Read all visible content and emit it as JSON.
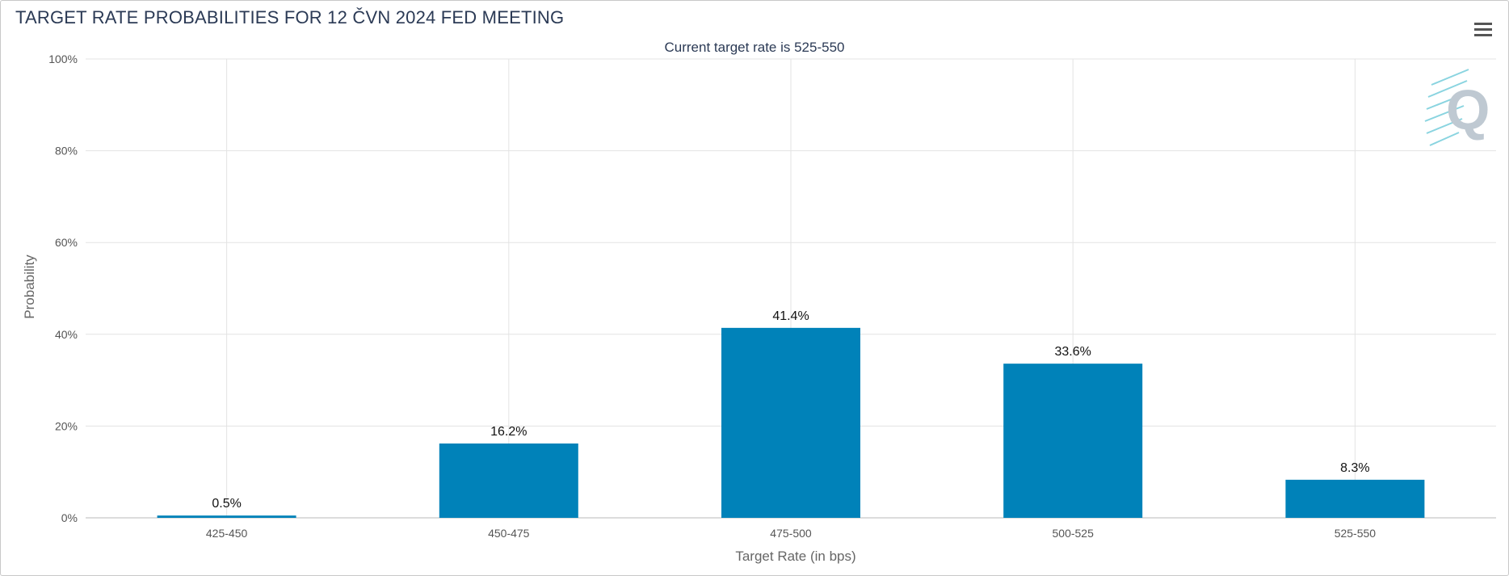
{
  "header": {
    "title": "TARGET RATE PROBABILITIES FOR 12 ČVN 2024 FED MEETING",
    "menu_icon": "hamburger-menu-icon",
    "logo_icon": "q-logo-icon"
  },
  "chart_data": {
    "type": "bar",
    "subtitle": "Current target rate is 525-550",
    "xlabel": "Target Rate (in bps)",
    "ylabel": "Probability",
    "categories": [
      "425-450",
      "450-475",
      "475-500",
      "500-525",
      "525-550"
    ],
    "values": [
      0.5,
      16.2,
      41.4,
      33.6,
      8.3
    ],
    "value_labels": [
      "0.5%",
      "16.2%",
      "41.4%",
      "33.6%",
      "8.3%"
    ],
    "ylim": [
      0,
      100
    ],
    "yticks": [
      0,
      20,
      40,
      60,
      80,
      100
    ],
    "ytick_labels": [
      "0%",
      "20%",
      "40%",
      "60%",
      "80%",
      "100%"
    ],
    "bar_color": "#0082b9",
    "grid": true,
    "legend": "none"
  }
}
